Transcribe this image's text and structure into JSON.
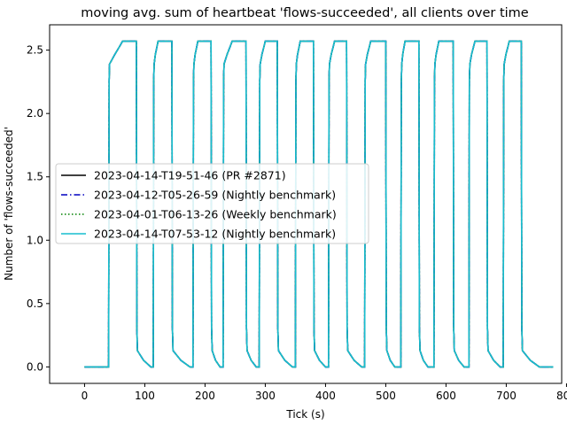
{
  "chart_data": {
    "type": "line",
    "title": "moving avg. sum of heartbeat 'flows-succeeded', all clients over time",
    "xlabel": "Tick (s)",
    "ylabel": "Number of 'flows-succeeded'",
    "xlim": [
      -58,
      792
    ],
    "ylim": [
      -0.13,
      2.7
    ],
    "xticks": [
      0,
      100,
      200,
      300,
      400,
      500,
      600,
      700,
      800
    ],
    "xtick_labels": [
      "0",
      "100",
      "200",
      "300",
      "400",
      "500",
      "600",
      "700",
      "800"
    ],
    "yticks": [
      0.0,
      0.5,
      1.0,
      1.5,
      2.0,
      2.5
    ],
    "ytick_labels": [
      "0.0",
      "0.5",
      "1.0",
      "1.5",
      "2.0",
      "2.5"
    ],
    "grid": false,
    "legend_position": "center-left",
    "pulses": [
      {
        "rise": 40,
        "top_start": 63,
        "top_end": 86,
        "fall_end": 110
      },
      {
        "rise": 114,
        "top_start": 122,
        "top_end": 145,
        "fall_end": 175
      },
      {
        "rise": 180,
        "top_start": 188,
        "top_end": 210,
        "fall_end": 225
      },
      {
        "rise": 230,
        "top_start": 245,
        "top_end": 268,
        "fall_end": 285
      },
      {
        "rise": 290,
        "top_start": 300,
        "top_end": 320,
        "fall_end": 345
      },
      {
        "rise": 350,
        "top_start": 358,
        "top_end": 380,
        "fall_end": 400
      },
      {
        "rise": 405,
        "top_start": 415,
        "top_end": 435,
        "fall_end": 460
      },
      {
        "rise": 465,
        "top_start": 475,
        "top_end": 500,
        "fall_end": 515
      },
      {
        "rise": 525,
        "top_start": 532,
        "top_end": 555,
        "fall_end": 570
      },
      {
        "rise": 580,
        "top_start": 588,
        "top_end": 612,
        "fall_end": 630
      },
      {
        "rise": 638,
        "top_start": 648,
        "top_end": 668,
        "fall_end": 690
      },
      {
        "rise": 695,
        "top_start": 705,
        "top_end": 725,
        "fall_end": 755
      }
    ],
    "peak_value": 2.57,
    "x_start": 0,
    "x_end": 778,
    "series": [
      {
        "name": "2023-04-14-T19-51-46 (PR #2871)",
        "color": "#000000",
        "style": "solid"
      },
      {
        "name": "2023-04-12-T05-26-59 (Nightly benchmark)",
        "color": "#0000c0",
        "style": "dashdot"
      },
      {
        "name": "2023-04-01-T06-13-26 (Weekly benchmark)",
        "color": "#008000",
        "style": "dotted"
      },
      {
        "name": "2023-04-14-T07-53-12 (Nightly benchmark)",
        "color": "#17becf",
        "style": "solid"
      }
    ]
  }
}
